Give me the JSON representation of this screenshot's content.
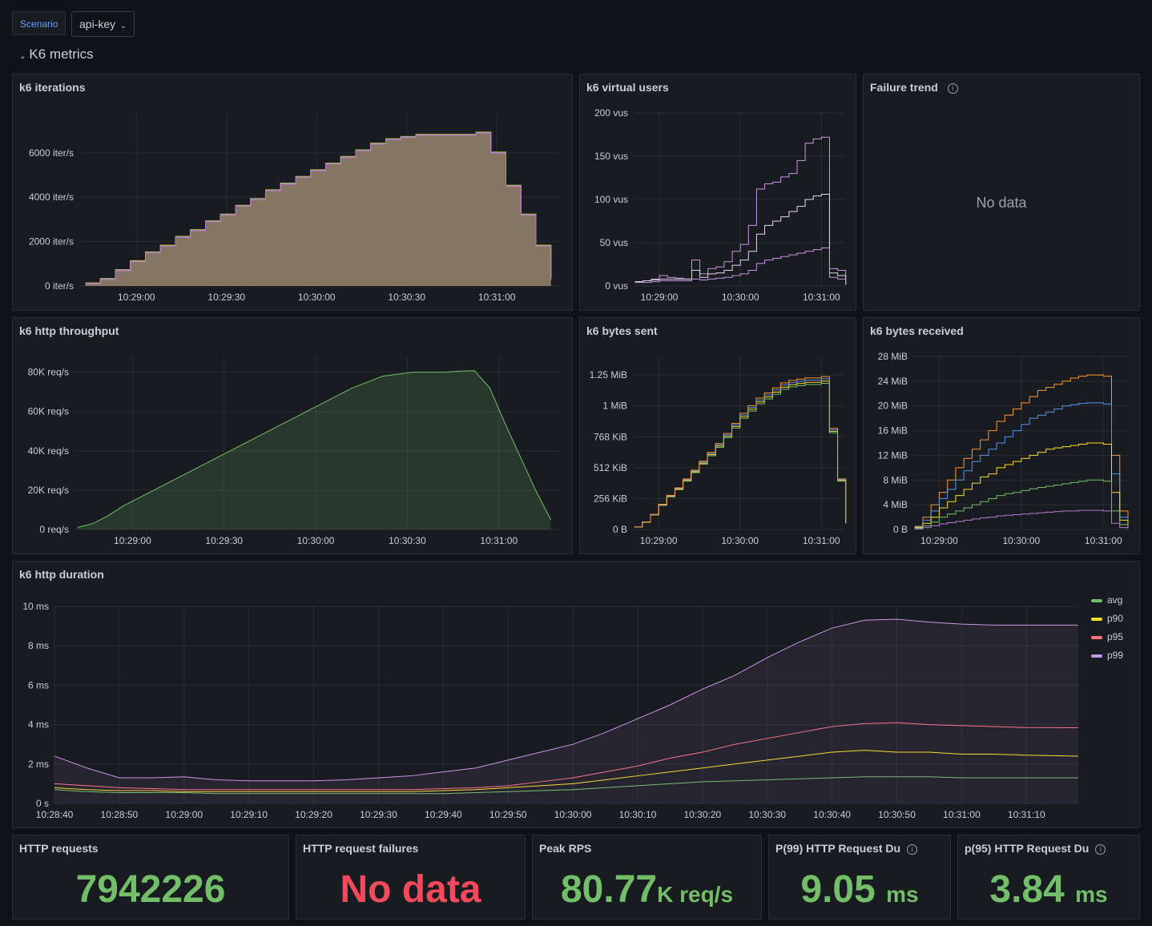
{
  "variable": {
    "label": "Scenario",
    "value": "api-key"
  },
  "row": {
    "title": "K6 metrics"
  },
  "colors": {
    "green": "#73bf69",
    "red": "#f2495c",
    "avg": "#73bf69",
    "p90": "#fade2a",
    "p95": "#ff7383",
    "p99": "#ca95e5"
  },
  "panels": {
    "iterations": {
      "title": "k6 iterations"
    },
    "vus": {
      "title": "k6 virtual users"
    },
    "failure": {
      "title": "Failure trend",
      "no_data": "No data"
    },
    "throughput": {
      "title": "k6 http throughput"
    },
    "bytes_sent": {
      "title": "k6 bytes sent"
    },
    "bytes_received": {
      "title": "k6 bytes received"
    },
    "duration": {
      "title": "k6 http duration",
      "legend": [
        "avg",
        "p90",
        "p95",
        "p99"
      ]
    },
    "http_requests": {
      "title": "HTTP requests",
      "value": "7942226"
    },
    "http_failures": {
      "title": "HTTP request failures",
      "value": "No data"
    },
    "peak_rps": {
      "title": "Peak RPS",
      "value": "80.77",
      "unit": "K req/s"
    },
    "p99": {
      "title": "P(99) HTTP Request Du",
      "value": "9.05",
      "unit": "ms"
    },
    "p95": {
      "title": "p(95) HTTP Request Du",
      "value": "3.84",
      "unit": "ms"
    }
  },
  "chart_data": [
    {
      "id": "iterations",
      "type": "area",
      "title": "k6 iterations",
      "y_ticks": [
        "0 iter/s",
        "2000 iter/s",
        "4000 iter/s",
        "6000 iter/s"
      ],
      "x_ticks": [
        "10:29:00",
        "10:29:30",
        "10:30:00",
        "10:30:30",
        "10:31:00"
      ],
      "ylim": [
        0,
        7800
      ],
      "x": [
        "10:28:43",
        "10:28:48",
        "10:28:53",
        "10:28:58",
        "10:29:03",
        "10:29:08",
        "10:29:13",
        "10:29:18",
        "10:29:23",
        "10:29:28",
        "10:29:33",
        "10:29:38",
        "10:29:43",
        "10:29:48",
        "10:29:53",
        "10:29:58",
        "10:30:03",
        "10:30:08",
        "10:30:13",
        "10:30:18",
        "10:30:23",
        "10:30:28",
        "10:30:33",
        "10:30:38",
        "10:30:43",
        "10:30:48",
        "10:30:53",
        "10:30:58",
        "10:31:03",
        "10:31:08",
        "10:31:13",
        "10:31:18"
      ],
      "values": [
        100,
        300,
        700,
        1100,
        1500,
        1800,
        2200,
        2500,
        2900,
        3200,
        3600,
        3900,
        4300,
        4600,
        4900,
        5200,
        5500,
        5800,
        6100,
        6400,
        6600,
        6700,
        6800,
        6800,
        6800,
        6800,
        6900,
        6000,
        4500,
        3200,
        1800,
        300
      ]
    },
    {
      "id": "vus",
      "type": "line",
      "title": "k6 virtual users",
      "y_ticks": [
        "0 vus",
        "50 vus",
        "100 vus",
        "150 vus",
        "200 vus"
      ],
      "x_ticks": [
        "10:29:00",
        "10:30:00",
        "10:31:00"
      ],
      "ylim": [
        0,
        200
      ],
      "x": [
        "10:28:42",
        "10:28:48",
        "10:28:54",
        "10:29:00",
        "10:29:06",
        "10:29:12",
        "10:29:18",
        "10:29:24",
        "10:29:30",
        "10:29:36",
        "10:29:42",
        "10:29:48",
        "10:29:54",
        "10:30:00",
        "10:30:06",
        "10:30:12",
        "10:30:18",
        "10:30:24",
        "10:30:30",
        "10:30:36",
        "10:30:42",
        "10:30:48",
        "10:30:54",
        "10:31:00",
        "10:31:06",
        "10:31:12",
        "10:31:18"
      ],
      "series": [
        {
          "values": [
            5,
            6,
            8,
            12,
            10,
            9,
            8,
            30,
            14,
            20,
            22,
            28,
            40,
            48,
            70,
            112,
            118,
            120,
            126,
            130,
            145,
            165,
            170,
            172,
            20,
            18,
            2
          ]
        },
        {
          "values": [
            5,
            6,
            7,
            8,
            8,
            8,
            8,
            18,
            10,
            14,
            15,
            18,
            24,
            30,
            40,
            60,
            70,
            75,
            80,
            86,
            92,
            100,
            104,
            106,
            15,
            12,
            2
          ]
        },
        {
          "values": [
            4,
            4,
            5,
            6,
            6,
            6,
            6,
            8,
            7,
            8,
            9,
            10,
            12,
            14,
            18,
            26,
            30,
            32,
            34,
            36,
            38,
            40,
            42,
            44,
            10,
            8,
            1
          ]
        }
      ]
    },
    {
      "id": "throughput",
      "type": "area",
      "title": "k6 http throughput",
      "y_ticks": [
        "0 req/s",
        "20K req/s",
        "40K req/s",
        "60K req/s",
        "80K req/s"
      ],
      "x_ticks": [
        "10:29:00",
        "10:29:30",
        "10:30:00",
        "10:30:30",
        "10:31:00"
      ],
      "ylim": [
        0,
        88000
      ],
      "x": [
        "10:28:42",
        "10:28:47",
        "10:28:52",
        "10:28:57",
        "10:29:02",
        "10:29:07",
        "10:29:12",
        "10:29:17",
        "10:29:22",
        "10:29:27",
        "10:29:32",
        "10:29:37",
        "10:29:42",
        "10:29:47",
        "10:29:52",
        "10:29:57",
        "10:30:02",
        "10:30:07",
        "10:30:12",
        "10:30:17",
        "10:30:22",
        "10:30:27",
        "10:30:32",
        "10:30:37",
        "10:30:42",
        "10:30:47",
        "10:30:52",
        "10:30:57",
        "10:31:02",
        "10:31:07",
        "10:31:12",
        "10:31:17"
      ],
      "values": [
        1000,
        3000,
        7000,
        12000,
        16000,
        20000,
        24000,
        28000,
        32000,
        36000,
        40000,
        44000,
        48000,
        52000,
        56000,
        60000,
        64000,
        68000,
        72000,
        75000,
        78000,
        79000,
        80000,
        80000,
        80000,
        80500,
        80770,
        72000,
        54000,
        37000,
        20000,
        5000
      ]
    },
    {
      "id": "bytes_sent",
      "type": "line",
      "title": "k6 bytes sent",
      "y_ticks": [
        "0 B",
        "256 KiB",
        "512 KiB",
        "768 KiB",
        "1 MiB",
        "1.25 MiB"
      ],
      "x_ticks": [
        "10:29:00",
        "10:30:00",
        "10:31:00"
      ],
      "ylim": [
        0,
        1.4
      ],
      "x": [
        "10:28:42",
        "10:28:48",
        "10:28:54",
        "10:29:00",
        "10:29:06",
        "10:29:12",
        "10:29:18",
        "10:29:24",
        "10:29:30",
        "10:29:36",
        "10:29:42",
        "10:29:48",
        "10:29:54",
        "10:30:00",
        "10:30:06",
        "10:30:12",
        "10:30:18",
        "10:30:24",
        "10:30:30",
        "10:30:36",
        "10:30:42",
        "10:30:48",
        "10:30:54",
        "10:31:00",
        "10:31:06",
        "10:31:12",
        "10:31:18"
      ],
      "values": [
        0.02,
        0.06,
        0.12,
        0.2,
        0.27,
        0.33,
        0.4,
        0.47,
        0.54,
        0.61,
        0.68,
        0.76,
        0.84,
        0.92,
        0.98,
        1.04,
        1.08,
        1.12,
        1.16,
        1.18,
        1.19,
        1.2,
        1.2,
        1.21,
        0.8,
        0.4,
        0.05
      ]
    },
    {
      "id": "bytes_received",
      "type": "line",
      "title": "k6 bytes received",
      "y_ticks": [
        "0 B",
        "4 MiB",
        "8 MiB",
        "12 MiB",
        "16 MiB",
        "20 MiB",
        "24 MiB",
        "28 MiB"
      ],
      "x_ticks": [
        "10:29:00",
        "10:30:00",
        "10:31:00"
      ],
      "ylim": [
        0,
        28
      ],
      "x": [
        "10:28:42",
        "10:28:48",
        "10:28:54",
        "10:29:00",
        "10:29:06",
        "10:29:12",
        "10:29:18",
        "10:29:24",
        "10:29:30",
        "10:29:36",
        "10:29:42",
        "10:29:48",
        "10:29:54",
        "10:30:00",
        "10:30:06",
        "10:30:12",
        "10:30:18",
        "10:30:24",
        "10:30:30",
        "10:30:36",
        "10:30:42",
        "10:30:48",
        "10:30:54",
        "10:31:00",
        "10:31:06",
        "10:31:12",
        "10:31:18"
      ],
      "series": [
        {
          "values": [
            0.5,
            2,
            4,
            6,
            8,
            10,
            11.5,
            13,
            14.5,
            16,
            17.5,
            18.5,
            19.5,
            20.5,
            21.5,
            22.5,
            23,
            23.5,
            24,
            24.5,
            24.8,
            25,
            25,
            24.8,
            12,
            3,
            1
          ]
        },
        {
          "values": [
            0.4,
            1.5,
            3,
            5,
            6.5,
            8,
            9.5,
            11,
            12,
            13,
            14,
            15,
            16,
            17,
            18,
            18.5,
            19,
            19.5,
            20,
            20.2,
            20.4,
            20.5,
            20.5,
            20.3,
            9,
            2,
            0.5
          ]
        },
        {
          "values": [
            0.3,
            1,
            2,
            3.5,
            4.5,
            5.5,
            6.5,
            7.5,
            8.5,
            9,
            10,
            10.5,
            11,
            11.5,
            12,
            12.5,
            13,
            13.2,
            13.4,
            13.6,
            13.8,
            14,
            14,
            13.8,
            6,
            1.5,
            0.3
          ]
        },
        {
          "values": [
            0.2,
            0.6,
            1.2,
            2,
            2.5,
            3,
            3.5,
            4,
            4.5,
            5,
            5.5,
            5.8,
            6,
            6.3,
            6.6,
            6.8,
            7,
            7.2,
            7.4,
            7.6,
            7.8,
            8,
            8,
            7.8,
            3,
            0.8,
            0.2
          ]
        },
        {
          "values": [
            0.1,
            0.3,
            0.6,
            0.9,
            1.1,
            1.3,
            1.5,
            1.7,
            1.9,
            2,
            2.2,
            2.3,
            2.4,
            2.5,
            2.6,
            2.7,
            2.8,
            2.9,
            3,
            3,
            3.1,
            3.1,
            3.1,
            3,
            1,
            0.3,
            0.1
          ]
        }
      ]
    },
    {
      "id": "duration",
      "type": "line",
      "title": "k6 http duration",
      "y_ticks": [
        "0 s",
        "2 ms",
        "4 ms",
        "6 ms",
        "8 ms",
        "10 ms"
      ],
      "x_ticks": [
        "10:28:40",
        "10:28:50",
        "10:29:00",
        "10:29:10",
        "10:29:20",
        "10:29:30",
        "10:29:40",
        "10:29:50",
        "10:30:00",
        "10:30:10",
        "10:30:20",
        "10:30:30",
        "10:30:40",
        "10:30:50",
        "10:31:00",
        "10:31:10"
      ],
      "ylim": [
        0,
        10
      ],
      "x": [
        "10:28:40",
        "10:28:45",
        "10:28:50",
        "10:28:55",
        "10:29:00",
        "10:29:05",
        "10:29:10",
        "10:29:15",
        "10:29:20",
        "10:29:25",
        "10:29:30",
        "10:29:35",
        "10:29:40",
        "10:29:45",
        "10:29:50",
        "10:29:55",
        "10:30:00",
        "10:30:05",
        "10:30:10",
        "10:30:15",
        "10:30:20",
        "10:30:25",
        "10:30:30",
        "10:30:35",
        "10:30:40",
        "10:30:45",
        "10:30:50",
        "10:30:55",
        "10:31:00",
        "10:31:05",
        "10:31:10",
        "10:31:18"
      ],
      "series": [
        {
          "name": "avg",
          "values": [
            0.7,
            0.6,
            0.55,
            0.55,
            0.55,
            0.5,
            0.5,
            0.5,
            0.5,
            0.5,
            0.5,
            0.5,
            0.5,
            0.55,
            0.6,
            0.65,
            0.7,
            0.8,
            0.9,
            1.0,
            1.1,
            1.15,
            1.2,
            1.25,
            1.3,
            1.35,
            1.35,
            1.35,
            1.3,
            1.3,
            1.3,
            1.3
          ]
        },
        {
          "name": "p90",
          "values": [
            0.8,
            0.7,
            0.65,
            0.65,
            0.6,
            0.6,
            0.6,
            0.6,
            0.6,
            0.6,
            0.6,
            0.6,
            0.65,
            0.7,
            0.8,
            0.9,
            1.0,
            1.2,
            1.4,
            1.6,
            1.8,
            2.0,
            2.2,
            2.4,
            2.6,
            2.7,
            2.6,
            2.6,
            2.5,
            2.5,
            2.45,
            2.4
          ]
        },
        {
          "name": "p95",
          "values": [
            1.0,
            0.9,
            0.8,
            0.75,
            0.7,
            0.7,
            0.7,
            0.7,
            0.7,
            0.7,
            0.7,
            0.7,
            0.75,
            0.8,
            0.9,
            1.1,
            1.3,
            1.6,
            1.9,
            2.3,
            2.6,
            3.0,
            3.3,
            3.6,
            3.9,
            4.05,
            4.1,
            4.0,
            3.95,
            3.9,
            3.85,
            3.84
          ]
        },
        {
          "name": "p99",
          "values": [
            2.4,
            1.8,
            1.3,
            1.3,
            1.35,
            1.2,
            1.15,
            1.15,
            1.15,
            1.2,
            1.3,
            1.4,
            1.6,
            1.8,
            2.2,
            2.6,
            3.0,
            3.6,
            4.3,
            5.0,
            5.8,
            6.5,
            7.4,
            8.2,
            8.9,
            9.3,
            9.35,
            9.2,
            9.1,
            9.05,
            9.05,
            9.05
          ]
        }
      ]
    }
  ]
}
